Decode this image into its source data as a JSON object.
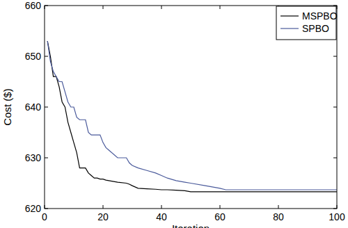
{
  "chart_data": {
    "type": "line",
    "x_label": "Iteration",
    "y_label": "Cost ($)",
    "x": [
      1,
      2,
      3,
      4,
      5,
      6,
      7,
      8,
      9,
      10,
      11,
      12,
      13,
      14,
      15,
      16,
      17,
      18,
      19,
      20,
      21,
      22,
      25,
      28,
      29,
      30,
      32,
      35,
      38,
      40,
      42,
      45,
      48,
      50,
      55,
      60,
      62,
      80,
      100
    ],
    "series": [
      {
        "name": "MSPBO",
        "color": "#000000",
        "values": [
          653,
          650,
          646,
          646,
          644,
          641,
          640,
          637,
          635,
          633,
          631,
          628,
          628,
          628,
          627,
          626.5,
          626,
          626,
          625.8,
          625.8,
          625.6,
          625.5,
          625.2,
          625,
          624.8,
          624.5,
          624,
          623.9,
          623.8,
          623.7,
          623.7,
          623.6,
          623.5,
          623.3,
          623.3,
          623.3,
          623.3,
          623.3,
          623.3
        ]
      },
      {
        "name": "SPBO",
        "color": "#4a5a9b",
        "values": [
          653,
          649,
          647,
          646,
          645,
          645,
          643,
          641,
          640,
          640,
          638,
          637.5,
          637.5,
          637.5,
          635,
          634.5,
          634.5,
          634.5,
          634.5,
          633,
          632,
          631.5,
          630,
          630,
          629,
          628.5,
          628,
          627.5,
          627,
          626.5,
          626,
          625.5,
          625.2,
          625,
          624.5,
          624,
          623.7,
          623.7,
          623.7
        ]
      }
    ],
    "xlim": [
      0,
      100
    ],
    "ylim": [
      620,
      660
    ],
    "xticks": [
      0,
      20,
      40,
      60,
      80,
      100
    ],
    "yticks": [
      620,
      630,
      640,
      650,
      660
    ],
    "grid": false,
    "legend": "northeast"
  }
}
